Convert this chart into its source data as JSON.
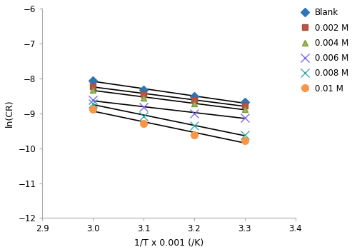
{
  "x_values": [
    3.0,
    3.1,
    3.2,
    3.3
  ],
  "series": [
    {
      "label": "Blank",
      "color": "#2E75B6",
      "marker": "D",
      "markersize": 6,
      "markerfacecolor": "#2E75B6",
      "y": [
        -8.05,
        -8.32,
        -8.52,
        -8.68
      ]
    },
    {
      "label": "0.002 M",
      "color": "#A0522D",
      "marker": "s",
      "markersize": 6,
      "markerfacecolor": "#C0504D",
      "y": [
        -8.22,
        -8.45,
        -8.62,
        -8.78
      ]
    },
    {
      "label": "0.004 M",
      "color": "#7B9A3A",
      "marker": "^",
      "markersize": 6,
      "markerfacecolor": "#9BBB59",
      "y": [
        -8.32,
        -8.55,
        -8.72,
        -8.88
      ]
    },
    {
      "label": "0.006 M",
      "color": "#7B68EE",
      "marker": "x",
      "markersize": 8,
      "markerfacecolor": "#7B68EE",
      "y": [
        -8.62,
        -8.82,
        -9.0,
        -9.12
      ]
    },
    {
      "label": "0.008 M",
      "color": "#38A8A8",
      "marker": "x",
      "markersize": 9,
      "markerfacecolor": "#38A8A8",
      "y": [
        -8.72,
        -9.08,
        -9.35,
        -9.62
      ]
    },
    {
      "label": "0.01 M",
      "color": "#F79646",
      "marker": "o",
      "markersize": 7,
      "markerfacecolor": "#F79646",
      "y": [
        -8.88,
        -9.28,
        -9.62,
        -9.78
      ]
    }
  ],
  "xlim": [
    2.9,
    3.4
  ],
  "ylim": [
    -12.0,
    -6.0
  ],
  "xlabel": "1/T x 0.001 (/K)",
  "ylabel": "ln(CR)",
  "xticks": [
    2.9,
    3.0,
    3.1,
    3.2,
    3.3,
    3.4
  ],
  "yticks": [
    -12.0,
    -11.0,
    -10.0,
    -9.0,
    -8.0,
    -7.0,
    -6.0
  ],
  "line_color": "black",
  "line_width": 1.2,
  "background_color": "#ffffff",
  "figwidth": 5.0,
  "figheight": 3.53,
  "dpi": 100
}
